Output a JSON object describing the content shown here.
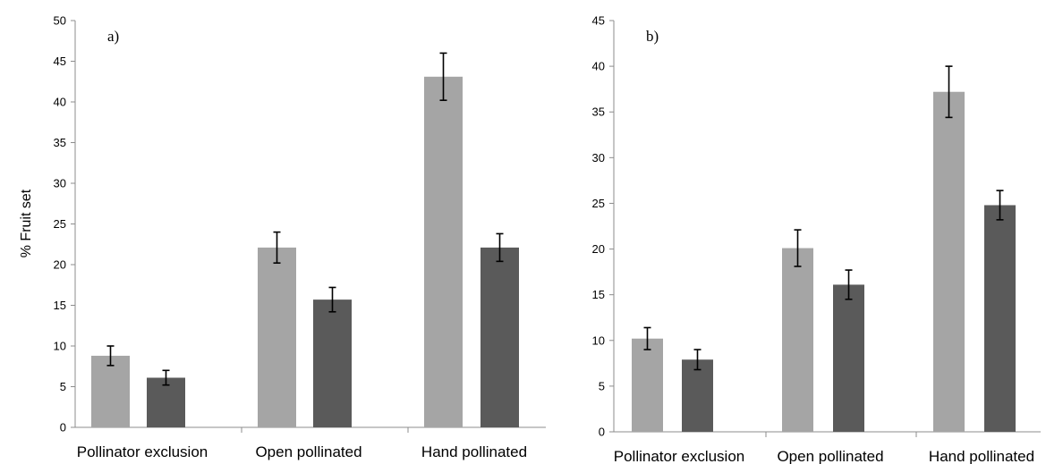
{
  "colors": {
    "series_light": "#a5a5a5",
    "series_dark": "#5a5a5a",
    "axis": "#8c8c8c",
    "error_bar": "#000000"
  },
  "chart_data": [
    {
      "type": "bar",
      "panel_label": "a)",
      "ylabel": "% Fruit set",
      "ylim": [
        0,
        50
      ],
      "yticks": [
        0,
        5,
        10,
        15,
        20,
        25,
        30,
        35,
        40,
        45,
        50
      ],
      "grid": false,
      "categories": [
        "Pollinator exclusion",
        "Open pollinated",
        "Hand pollinated"
      ],
      "series": [
        {
          "values": [
            8.8,
            22.1,
            43.1
          ],
          "errors": [
            1.2,
            1.9,
            2.9
          ]
        },
        {
          "values": [
            6.1,
            15.7,
            22.1
          ],
          "errors": [
            0.9,
            1.5,
            1.7
          ]
        }
      ]
    },
    {
      "type": "bar",
      "panel_label": "b)",
      "ylabel": "",
      "ylim": [
        0,
        45
      ],
      "yticks": [
        0,
        5,
        10,
        15,
        20,
        25,
        30,
        35,
        40,
        45
      ],
      "grid": false,
      "categories": [
        "Pollinator exclusion",
        "Open pollinated",
        "Hand pollinated"
      ],
      "series": [
        {
          "values": [
            10.2,
            20.1,
            37.2
          ],
          "errors": [
            1.2,
            2.0,
            2.8
          ]
        },
        {
          "values": [
            7.9,
            16.1,
            24.8
          ],
          "errors": [
            1.1,
            1.6,
            1.6
          ]
        }
      ]
    }
  ]
}
